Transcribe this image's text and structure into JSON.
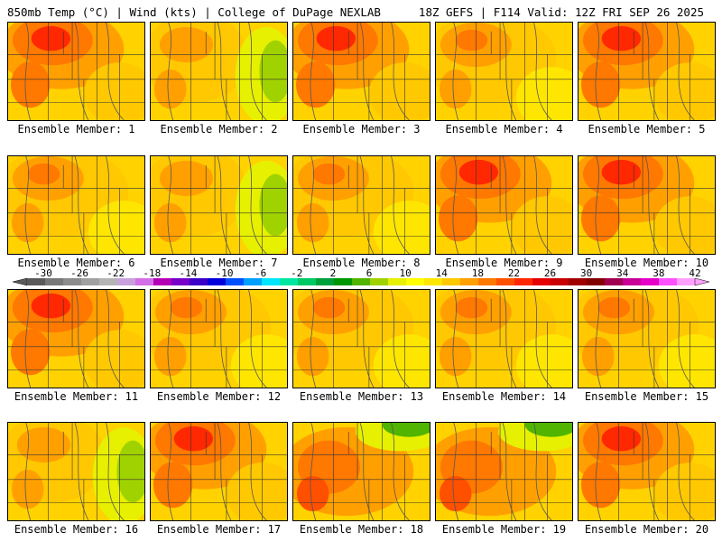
{
  "header": {
    "left": "850mb Temp (°C) | Wind (kts) | College of DuPage NEXLAB",
    "right": "18Z GEFS | F114 Valid: 12Z FRI SEP 26 2025"
  },
  "members": [
    {
      "label": "Ensemble Member: 1",
      "tone": "hot"
    },
    {
      "label": "Ensemble Member: 2",
      "tone": "cool-east"
    },
    {
      "label": "Ensemble Member: 3",
      "tone": "hot"
    },
    {
      "label": "Ensemble Member: 4",
      "tone": "warm"
    },
    {
      "label": "Ensemble Member: 5",
      "tone": "hot"
    },
    {
      "label": "Ensemble Member: 6",
      "tone": "warm"
    },
    {
      "label": "Ensemble Member: 7",
      "tone": "cool-east"
    },
    {
      "label": "Ensemble Member: 8",
      "tone": "warm"
    },
    {
      "label": "Ensemble Member: 9",
      "tone": "hot"
    },
    {
      "label": "Ensemble Member: 10",
      "tone": "hot"
    },
    {
      "label": "Ensemble Member: 11",
      "tone": "hot"
    },
    {
      "label": "Ensemble Member: 12",
      "tone": "warm"
    },
    {
      "label": "Ensemble Member: 13",
      "tone": "warm"
    },
    {
      "label": "Ensemble Member: 14",
      "tone": "warm"
    },
    {
      "label": "Ensemble Member: 15",
      "tone": "warm"
    },
    {
      "label": "Ensemble Member: 16",
      "tone": "cool-east"
    },
    {
      "label": "Ensemble Member: 17",
      "tone": "hot"
    },
    {
      "label": "Ensemble Member: 18",
      "tone": "cool-ne"
    },
    {
      "label": "Ensemble Member: 19",
      "tone": "cool-ne"
    },
    {
      "label": "Ensemble Member: 20",
      "tone": "hot"
    }
  ],
  "colorbar": {
    "labels": [
      "-30",
      "-26",
      "-22",
      "-18",
      "-14",
      "-10",
      "-6",
      "-2",
      "2",
      "6",
      "10",
      "14",
      "18",
      "22",
      "26",
      "30",
      "34",
      "38",
      "42"
    ],
    "colors": [
      "#5a5a5a",
      "#787878",
      "#8c8c8c",
      "#a0a0a0",
      "#b4b4b4",
      "#c8a0dc",
      "#d26ee6",
      "#b400b4",
      "#7800c8",
      "#3c00c8",
      "#0000dc",
      "#0050ff",
      "#00a0ff",
      "#00e6ff",
      "#00e6a0",
      "#00c864",
      "#00a03c",
      "#009600",
      "#50b400",
      "#a0d200",
      "#e6f000",
      "#ffff00",
      "#ffe600",
      "#ffc800",
      "#ffa000",
      "#ff7800",
      "#ff5000",
      "#ff2800",
      "#e60000",
      "#c80000",
      "#a00000",
      "#820000",
      "#a00050",
      "#c80096",
      "#e600c8",
      "#ff50ff",
      "#ffa0ff"
    ]
  }
}
